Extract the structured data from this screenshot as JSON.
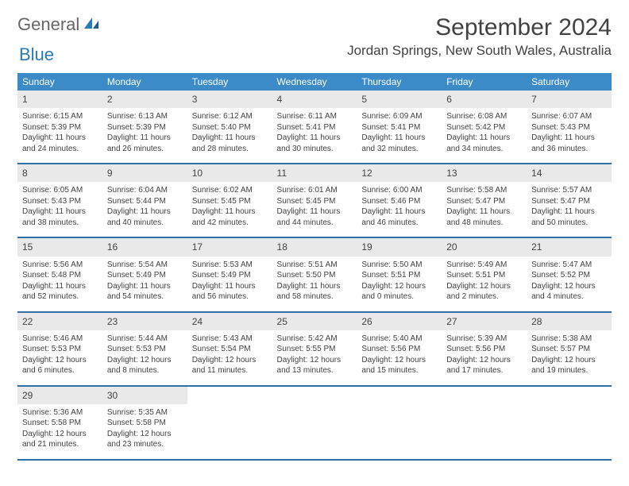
{
  "logo": {
    "text1": "General",
    "text2": "Blue"
  },
  "title": "September 2024",
  "location": "Jordan Springs, New South Wales, Australia",
  "colors": {
    "header_bg": "#3b8bc9",
    "header_text": "#ffffff",
    "daynum_bg": "#e9e9e9",
    "row_border": "#2f6fa3",
    "body_text": "#424242",
    "logo_gray": "#666666",
    "logo_blue": "#2a7ab8"
  },
  "weekdays": [
    "Sunday",
    "Monday",
    "Tuesday",
    "Wednesday",
    "Thursday",
    "Friday",
    "Saturday"
  ],
  "weeks": [
    [
      {
        "n": "1",
        "sr": "6:15 AM",
        "ss": "5:39 PM",
        "dl": "11 hours and 24 minutes."
      },
      {
        "n": "2",
        "sr": "6:13 AM",
        "ss": "5:39 PM",
        "dl": "11 hours and 26 minutes."
      },
      {
        "n": "3",
        "sr": "6:12 AM",
        "ss": "5:40 PM",
        "dl": "11 hours and 28 minutes."
      },
      {
        "n": "4",
        "sr": "6:11 AM",
        "ss": "5:41 PM",
        "dl": "11 hours and 30 minutes."
      },
      {
        "n": "5",
        "sr": "6:09 AM",
        "ss": "5:41 PM",
        "dl": "11 hours and 32 minutes."
      },
      {
        "n": "6",
        "sr": "6:08 AM",
        "ss": "5:42 PM",
        "dl": "11 hours and 34 minutes."
      },
      {
        "n": "7",
        "sr": "6:07 AM",
        "ss": "5:43 PM",
        "dl": "11 hours and 36 minutes."
      }
    ],
    [
      {
        "n": "8",
        "sr": "6:05 AM",
        "ss": "5:43 PM",
        "dl": "11 hours and 38 minutes."
      },
      {
        "n": "9",
        "sr": "6:04 AM",
        "ss": "5:44 PM",
        "dl": "11 hours and 40 minutes."
      },
      {
        "n": "10",
        "sr": "6:02 AM",
        "ss": "5:45 PM",
        "dl": "11 hours and 42 minutes."
      },
      {
        "n": "11",
        "sr": "6:01 AM",
        "ss": "5:45 PM",
        "dl": "11 hours and 44 minutes."
      },
      {
        "n": "12",
        "sr": "6:00 AM",
        "ss": "5:46 PM",
        "dl": "11 hours and 46 minutes."
      },
      {
        "n": "13",
        "sr": "5:58 AM",
        "ss": "5:47 PM",
        "dl": "11 hours and 48 minutes."
      },
      {
        "n": "14",
        "sr": "5:57 AM",
        "ss": "5:47 PM",
        "dl": "11 hours and 50 minutes."
      }
    ],
    [
      {
        "n": "15",
        "sr": "5:56 AM",
        "ss": "5:48 PM",
        "dl": "11 hours and 52 minutes."
      },
      {
        "n": "16",
        "sr": "5:54 AM",
        "ss": "5:49 PM",
        "dl": "11 hours and 54 minutes."
      },
      {
        "n": "17",
        "sr": "5:53 AM",
        "ss": "5:49 PM",
        "dl": "11 hours and 56 minutes."
      },
      {
        "n": "18",
        "sr": "5:51 AM",
        "ss": "5:50 PM",
        "dl": "11 hours and 58 minutes."
      },
      {
        "n": "19",
        "sr": "5:50 AM",
        "ss": "5:51 PM",
        "dl": "12 hours and 0 minutes."
      },
      {
        "n": "20",
        "sr": "5:49 AM",
        "ss": "5:51 PM",
        "dl": "12 hours and 2 minutes."
      },
      {
        "n": "21",
        "sr": "5:47 AM",
        "ss": "5:52 PM",
        "dl": "12 hours and 4 minutes."
      }
    ],
    [
      {
        "n": "22",
        "sr": "5:46 AM",
        "ss": "5:53 PM",
        "dl": "12 hours and 6 minutes."
      },
      {
        "n": "23",
        "sr": "5:44 AM",
        "ss": "5:53 PM",
        "dl": "12 hours and 8 minutes."
      },
      {
        "n": "24",
        "sr": "5:43 AM",
        "ss": "5:54 PM",
        "dl": "12 hours and 11 minutes."
      },
      {
        "n": "25",
        "sr": "5:42 AM",
        "ss": "5:55 PM",
        "dl": "12 hours and 13 minutes."
      },
      {
        "n": "26",
        "sr": "5:40 AM",
        "ss": "5:56 PM",
        "dl": "12 hours and 15 minutes."
      },
      {
        "n": "27",
        "sr": "5:39 AM",
        "ss": "5:56 PM",
        "dl": "12 hours and 17 minutes."
      },
      {
        "n": "28",
        "sr": "5:38 AM",
        "ss": "5:57 PM",
        "dl": "12 hours and 19 minutes."
      }
    ],
    [
      {
        "n": "29",
        "sr": "5:36 AM",
        "ss": "5:58 PM",
        "dl": "12 hours and 21 minutes."
      },
      {
        "n": "30",
        "sr": "5:35 AM",
        "ss": "5:58 PM",
        "dl": "12 hours and 23 minutes."
      },
      null,
      null,
      null,
      null,
      null
    ]
  ],
  "labels": {
    "sunrise": "Sunrise:",
    "sunset": "Sunset:",
    "daylight": "Daylight:"
  }
}
